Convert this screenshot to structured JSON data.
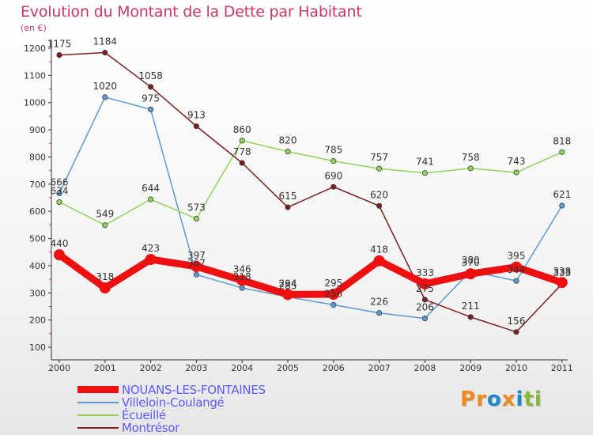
{
  "title": "Evolution du Montant de la Dette par Habitant",
  "unit_label": "(en €)",
  "logo": {
    "letters": [
      "P",
      "r",
      "o",
      "x",
      "i",
      "t",
      "i"
    ],
    "colors": [
      "#f08a1c",
      "#f08a1c",
      "#1e88c8",
      "#f08a1c",
      "#1e88c8",
      "#86b83a",
      "#86b83a"
    ]
  },
  "chart_data": {
    "type": "line",
    "title": "Evolution du Montant de la Dette par Habitant",
    "ylabel": "(en €)",
    "xlabel": "",
    "ylim": [
      100,
      1200
    ],
    "yticks": [
      "100",
      "200",
      "300",
      "400",
      "500",
      "600",
      "700",
      "800",
      "900",
      "1000",
      "1100",
      "1200"
    ],
    "categories": [
      "2000",
      "2001",
      "2002",
      "2003",
      "2004",
      "2005",
      "2006",
      "2007",
      "2008",
      "2009",
      "2010",
      "2011"
    ],
    "grid": false,
    "legend_position": "bottom-left",
    "series": [
      {
        "name": "NOUANS-LES-FONTAINES",
        "color": "#ee1010",
        "emphasis": true,
        "values": [
          440,
          318,
          423,
          397,
          346,
          294,
          295,
          418,
          333,
          370,
          395,
          338
        ],
        "labels": [
          "440",
          "318",
          "423",
          "397",
          "346",
          "294",
          "295",
          "418",
          "333",
          "370",
          "395",
          "338"
        ]
      },
      {
        "name": "Villeloin-Coulangé",
        "color": "#5b9bd5",
        "values": [
          666,
          1020,
          975,
          367,
          318,
          285,
          256,
          226,
          206,
          380,
          344,
          621
        ],
        "labels": [
          "666",
          "1020",
          "975",
          "367",
          "318",
          "285",
          "256",
          "226",
          "206",
          "380",
          "344",
          "621"
        ]
      },
      {
        "name": "Écueillé",
        "color": "#8fd45a",
        "values": [
          634,
          549,
          644,
          573,
          860,
          820,
          785,
          757,
          741,
          758,
          743,
          818
        ],
        "labels": [
          "634",
          "549",
          "644",
          "573",
          "860",
          "820",
          "785",
          "757",
          "741",
          "758",
          "743",
          "818"
        ]
      },
      {
        "name": "Montrésor",
        "color": "#7a2020",
        "values": [
          1175,
          1184,
          1058,
          913,
          778,
          615,
          690,
          620,
          275,
          211,
          156,
          333
        ],
        "labels": [
          "1175",
          "1184",
          "1058",
          "913",
          "778",
          "615",
          "690",
          "620",
          "275",
          "211",
          "156",
          "333"
        ]
      }
    ]
  }
}
